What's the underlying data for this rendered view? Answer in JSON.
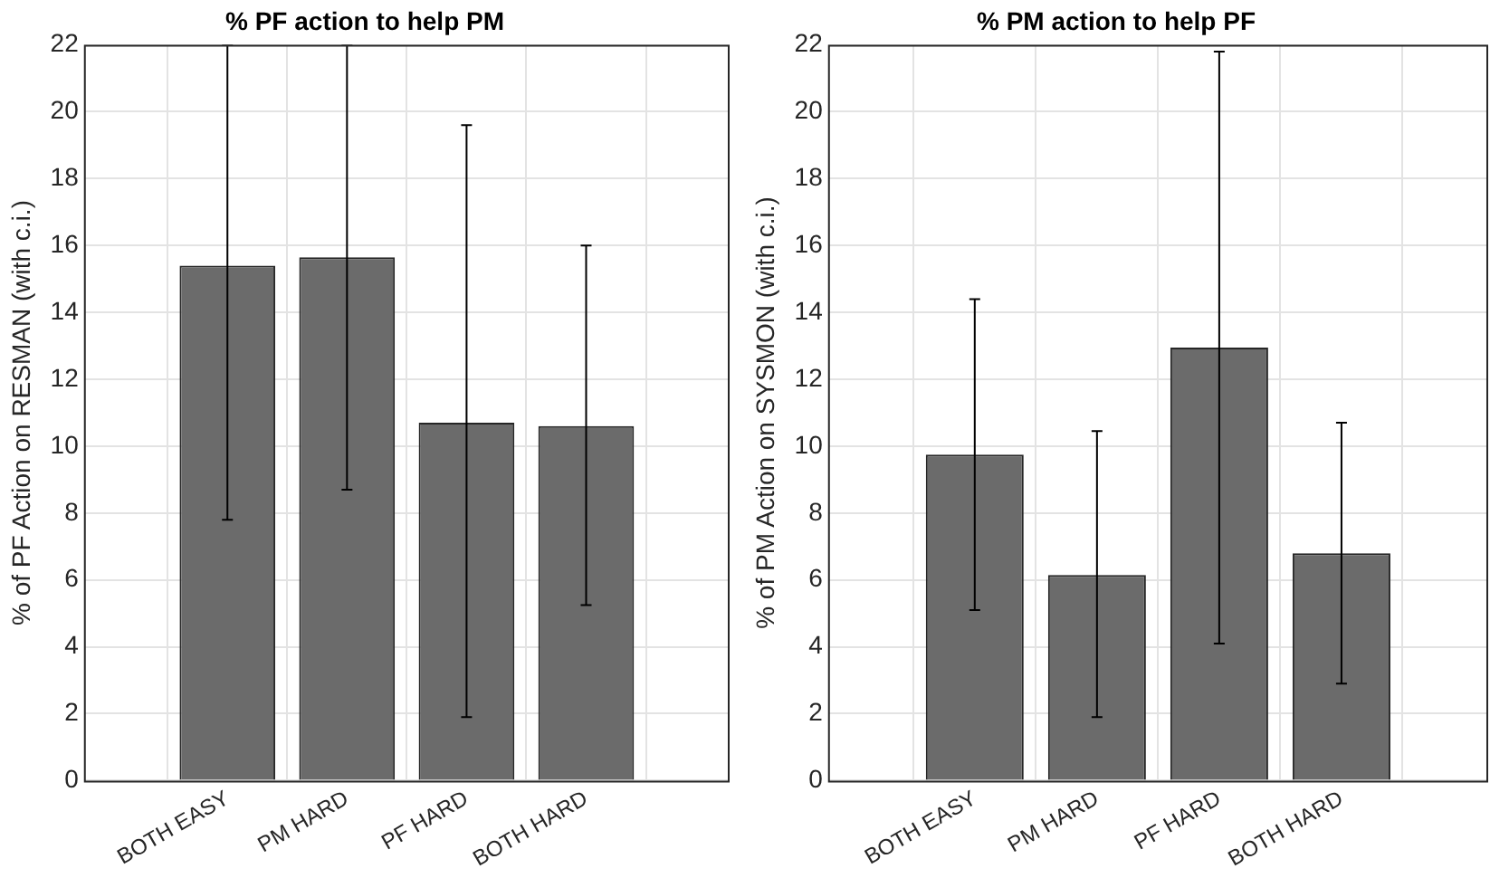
{
  "chart_data": [
    {
      "type": "bar",
      "title": "% PF action to help PM",
      "ylabel": "% of PF Action on RESMAN (with c.i.)",
      "categories": [
        "BOTH EASY",
        "PM HARD",
        "PF HARD",
        "BOTH HARD"
      ],
      "values": [
        15.4,
        15.65,
        10.7,
        10.6
      ],
      "color": "#6b6b6b",
      "errors": [
        [
          7.8,
          22
        ],
        [
          8.7,
          22
        ],
        [
          1.9,
          19.6
        ],
        [
          5.25,
          16.0
        ]
      ],
      "ylim": [
        0,
        22
      ],
      "yticks": [
        0,
        2,
        4,
        6,
        8,
        10,
        12,
        14,
        16,
        18,
        20,
        22
      ],
      "grid": true
    },
    {
      "type": "bar",
      "title": "% PM action to help PF",
      "ylabel": "% of PM Action on SYSMON (with c.i.)",
      "categories": [
        "BOTH EASY",
        "PM HARD",
        "PF HARD",
        "BOTH HARD"
      ],
      "values": [
        9.75,
        6.15,
        12.95,
        6.8
      ],
      "color": "#6b6b6b",
      "errors": [
        [
          5.1,
          14.4
        ],
        [
          1.9,
          10.45
        ],
        [
          4.1,
          21.8
        ],
        [
          2.9,
          10.7
        ]
      ],
      "ylim": [
        0,
        22
      ],
      "yticks": [
        0,
        2,
        4,
        6,
        8,
        10,
        12,
        14,
        16,
        18,
        20,
        22
      ],
      "grid": true
    }
  ]
}
